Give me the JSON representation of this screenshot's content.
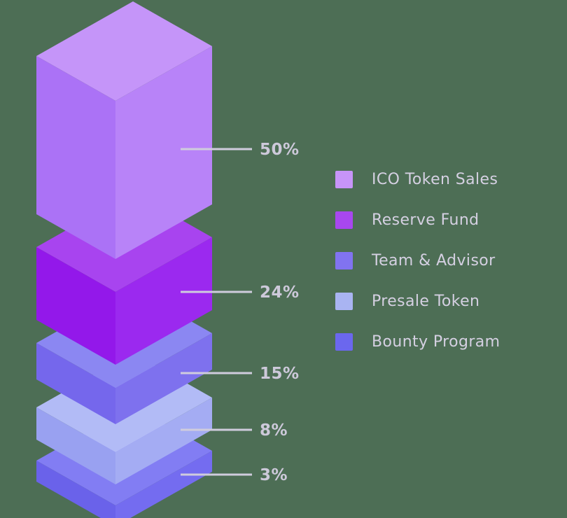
{
  "background": "#4d6e55",
  "chart_data": {
    "type": "bar",
    "variant": "isometric-3d-stacked-tower",
    "categories": [
      "ICO Token Sales",
      "Reserve Fund",
      "Team & Advisor",
      "Presale Token",
      "Bounty Program"
    ],
    "values": [
      50,
      24,
      15,
      8,
      3
    ],
    "unit": "%",
    "data_labels": [
      "50%",
      "24%",
      "15%",
      "8%",
      "3%"
    ],
    "legend_position": "right",
    "axes": "none",
    "grid": "off"
  },
  "blocks": [
    {
      "name": "ico-token-sales",
      "percent_label": "50%",
      "face_top": "#c595f9",
      "face_left": "#ab72f6",
      "face_right": "#b883f8"
    },
    {
      "name": "reserve-fund",
      "percent_label": "24%",
      "face_top": "#a844ef",
      "face_left": "#9318ea",
      "face_right": "#9b29ef"
    },
    {
      "name": "team-advisor",
      "percent_label": "15%",
      "face_top": "#8b87f2",
      "face_left": "#7567ec",
      "face_right": "#7e71ee"
    },
    {
      "name": "presale-token",
      "percent_label": "8%",
      "face_top": "#b2bbf6",
      "face_left": "#99a1f1",
      "face_right": "#a4acf3"
    },
    {
      "name": "bounty-program",
      "percent_label": "3%",
      "face_top": "#827df3",
      "face_left": "#6a62ea",
      "face_right": "#746cf0"
    }
  ],
  "callout": {
    "line_color": "#cfccdd",
    "text_color": "#cdc9da"
  },
  "legend": {
    "text_color": "#d5d0e2",
    "items": [
      {
        "label": "ICO Token Sales",
        "color": "#c794f8"
      },
      {
        "label": "Reserve Fund",
        "color": "#a847ef"
      },
      {
        "label": "Team & Advisor",
        "color": "#8173f0"
      },
      {
        "label": "Presale Token",
        "color": "#a9b4f2"
      },
      {
        "label": "Bounty Program",
        "color": "#6b67ee"
      }
    ]
  }
}
